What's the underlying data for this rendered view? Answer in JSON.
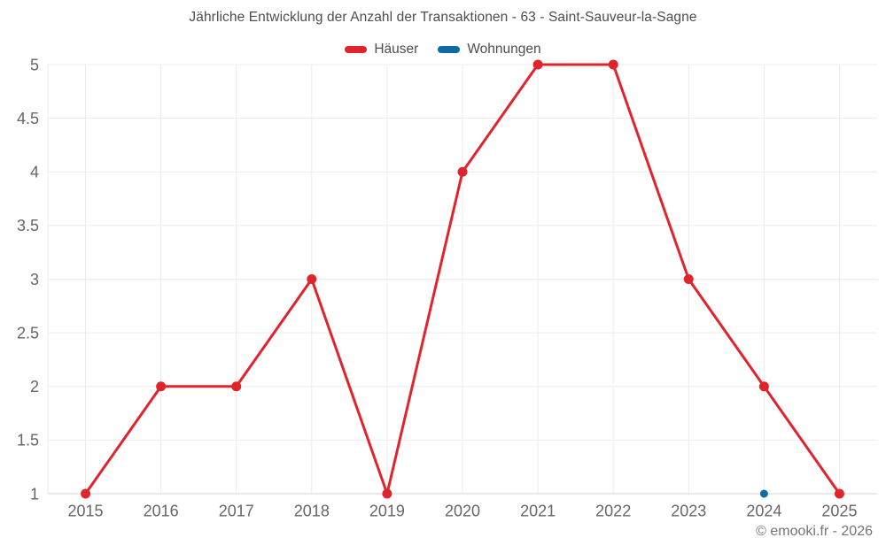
{
  "title": "Jährliche Entwicklung der Anzahl der Transaktionen - 63 - Saint-Sauveur-la-Sagne",
  "footer": {
    "copyright": "© emooki.fr - 2026"
  },
  "colors": {
    "haeuser": "#e0242b",
    "wohnungen": "#1169a6",
    "grid": "#ececec",
    "axis": "#d6d6d6",
    "tick_text": "#666666",
    "title_text": "#4d4d4d"
  },
  "chart_data": {
    "type": "line",
    "title": "Jährliche Entwicklung der Anzahl der Transaktionen - 63 - Saint-Sauveur-la-Sagne",
    "x": [
      2015,
      2016,
      2017,
      2018,
      2019,
      2020,
      2021,
      2022,
      2023,
      2024,
      2025
    ],
    "series": [
      {
        "name": "Häuser",
        "color": "#e0242b",
        "values": [
          1,
          2,
          2,
          3,
          1,
          4,
          5,
          5,
          3,
          2,
          1
        ]
      },
      {
        "name": "Wohnungen",
        "color": "#1169a6",
        "values": [
          null,
          null,
          null,
          null,
          null,
          null,
          null,
          null,
          null,
          1,
          null
        ]
      }
    ],
    "xlabel": "",
    "ylabel": "",
    "ylim": [
      1,
      5
    ],
    "yticks": [
      1,
      1.5,
      2,
      2.5,
      3,
      3.5,
      4,
      4.5,
      5
    ],
    "grid": true,
    "legend_position": "top"
  }
}
